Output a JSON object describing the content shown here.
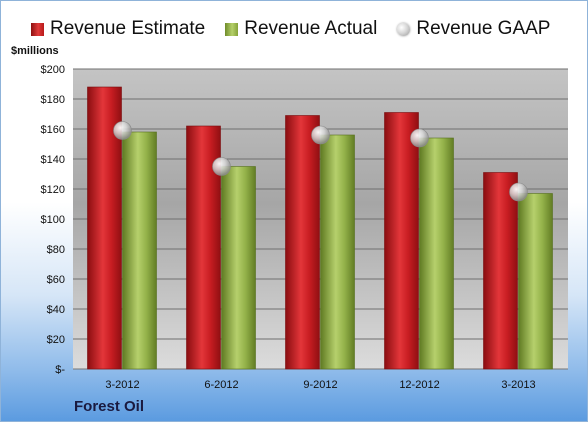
{
  "legend": {
    "estimate": "Revenue Estimate",
    "actual": "Revenue Actual",
    "gaap": "Revenue GAAP"
  },
  "unit_label": "$millions",
  "company": "Forest Oil",
  "colors": {
    "estimate": "#c0161b",
    "actual": "#8fae47",
    "gaap": "#d0d0d0"
  },
  "chart_data": {
    "type": "bar",
    "categories": [
      "3-2012",
      "6-2012",
      "9-2012",
      "12-2012",
      "3-2013"
    ],
    "series": [
      {
        "name": "Revenue Estimate",
        "values": [
          188,
          162,
          169,
          171,
          131
        ]
      },
      {
        "name": "Revenue Actual",
        "values": [
          158,
          135,
          156,
          154,
          117
        ]
      },
      {
        "name": "Revenue GAAP",
        "values": [
          159,
          135,
          156,
          154,
          118
        ]
      }
    ],
    "ylabel": "$millions",
    "ylim": [
      0,
      200
    ],
    "yticks": [
      0,
      20,
      40,
      60,
      80,
      100,
      120,
      140,
      160,
      180,
      200
    ],
    "ytick_labels": [
      "$-",
      "$20",
      "$40",
      "$60",
      "$80",
      "$100",
      "$120",
      "$140",
      "$160",
      "$180",
      "$200"
    ],
    "grid": true,
    "legend_position": "top"
  }
}
